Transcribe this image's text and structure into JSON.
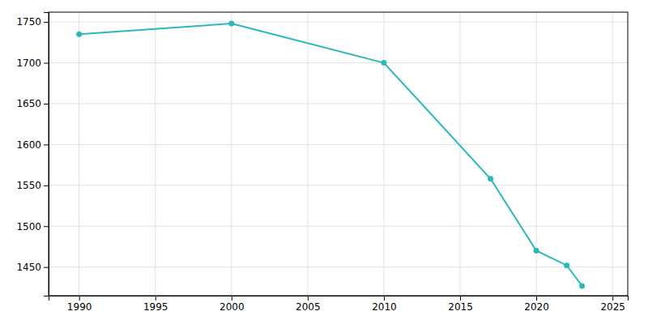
{
  "chart_data": {
    "type": "line",
    "x": [
      1990,
      2000,
      2010,
      2017,
      2020,
      2022,
      2023
    ],
    "values": [
      1735,
      1748,
      1700,
      1558,
      1470,
      1452,
      1427
    ],
    "color": "#2ab8b8",
    "marker": "circle",
    "xlim": [
      1988,
      2026
    ],
    "ylim": [
      1415,
      1762
    ],
    "xticks": [
      1990,
      1995,
      2000,
      2005,
      2010,
      2015,
      2020,
      2025
    ],
    "yticks": [
      1450,
      1500,
      1550,
      1600,
      1650,
      1700,
      1750
    ],
    "grid": true
  }
}
